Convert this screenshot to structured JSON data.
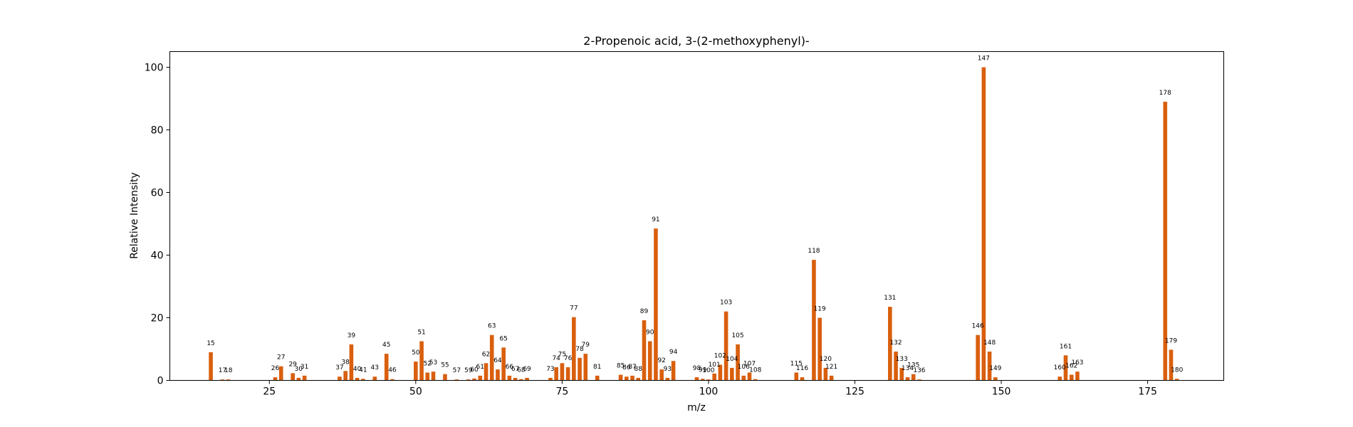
{
  "chart_data": {
    "type": "bar",
    "title": "2-Propenoic acid, 3-(2-methoxyphenyl)-",
    "xlabel": "m/z",
    "ylabel": "Relative Intensity",
    "xlim": [
      8,
      188
    ],
    "ylim": [
      0,
      105
    ],
    "xticks": [
      25,
      50,
      75,
      100,
      125,
      150,
      175
    ],
    "yticks": [
      0,
      20,
      40,
      60,
      80,
      100
    ],
    "grid": false,
    "bar_color": "#d95f0e",
    "peaks": [
      {
        "mz": 15,
        "intensity": 9
      },
      {
        "mz": 17,
        "intensity": 0.3
      },
      {
        "mz": 18,
        "intensity": 0.3
      },
      {
        "mz": 26,
        "intensity": 1
      },
      {
        "mz": 27,
        "intensity": 4.5
      },
      {
        "mz": 29,
        "intensity": 2.3
      },
      {
        "mz": 30,
        "intensity": 0.8
      },
      {
        "mz": 31,
        "intensity": 1.5
      },
      {
        "mz": 37,
        "intensity": 1.2
      },
      {
        "mz": 38,
        "intensity": 3
      },
      {
        "mz": 39,
        "intensity": 11.5
      },
      {
        "mz": 40,
        "intensity": 0.8
      },
      {
        "mz": 41,
        "intensity": 0.5
      },
      {
        "mz": 43,
        "intensity": 1.2
      },
      {
        "mz": 45,
        "intensity": 8.5
      },
      {
        "mz": 46,
        "intensity": 0.4
      },
      {
        "mz": 50,
        "intensity": 6
      },
      {
        "mz": 51,
        "intensity": 12.5
      },
      {
        "mz": 52,
        "intensity": 2.5
      },
      {
        "mz": 53,
        "intensity": 2.8
      },
      {
        "mz": 55,
        "intensity": 2
      },
      {
        "mz": 57,
        "intensity": 0.3
      },
      {
        "mz": 59,
        "intensity": 0.3
      },
      {
        "mz": 60,
        "intensity": 0.6
      },
      {
        "mz": 61,
        "intensity": 1.5
      },
      {
        "mz": 62,
        "intensity": 5.5
      },
      {
        "mz": 63,
        "intensity": 14.5
      },
      {
        "mz": 64,
        "intensity": 3.5
      },
      {
        "mz": 65,
        "intensity": 10.5
      },
      {
        "mz": 66,
        "intensity": 1.5
      },
      {
        "mz": 67,
        "intensity": 0.8
      },
      {
        "mz": 68,
        "intensity": 0.4
      },
      {
        "mz": 69,
        "intensity": 0.8
      },
      {
        "mz": 73,
        "intensity": 0.8
      },
      {
        "mz": 74,
        "intensity": 4.2
      },
      {
        "mz": 75,
        "intensity": 5.5
      },
      {
        "mz": 76,
        "intensity": 4.2
      },
      {
        "mz": 77,
        "intensity": 20.2
      },
      {
        "mz": 78,
        "intensity": 7.2
      },
      {
        "mz": 79,
        "intensity": 8.5
      },
      {
        "mz": 81,
        "intensity": 1.5
      },
      {
        "mz": 85,
        "intensity": 1.8
      },
      {
        "mz": 86,
        "intensity": 1.2
      },
      {
        "mz": 87,
        "intensity": 1.5
      },
      {
        "mz": 88,
        "intensity": 0.8
      },
      {
        "mz": 89,
        "intensity": 19.2
      },
      {
        "mz": 90,
        "intensity": 12.5
      },
      {
        "mz": 91,
        "intensity": 48.5
      },
      {
        "mz": 92,
        "intensity": 3.5
      },
      {
        "mz": 93,
        "intensity": 0.8
      },
      {
        "mz": 94,
        "intensity": 6.2
      },
      {
        "mz": 98,
        "intensity": 1
      },
      {
        "mz": 99,
        "intensity": 0.5
      },
      {
        "mz": 100,
        "intensity": 0.3
      },
      {
        "mz": 101,
        "intensity": 2.2
      },
      {
        "mz": 102,
        "intensity": 5
      },
      {
        "mz": 103,
        "intensity": 22
      },
      {
        "mz": 104,
        "intensity": 4
      },
      {
        "mz": 105,
        "intensity": 11.5
      },
      {
        "mz": 106,
        "intensity": 1.5
      },
      {
        "mz": 107,
        "intensity": 2.5
      },
      {
        "mz": 108,
        "intensity": 0.4
      },
      {
        "mz": 115,
        "intensity": 2.5
      },
      {
        "mz": 116,
        "intensity": 1
      },
      {
        "mz": 118,
        "intensity": 38.5
      },
      {
        "mz": 119,
        "intensity": 20
      },
      {
        "mz": 120,
        "intensity": 4
      },
      {
        "mz": 121,
        "intensity": 1.5
      },
      {
        "mz": 131,
        "intensity": 23.5
      },
      {
        "mz": 132,
        "intensity": 9.2
      },
      {
        "mz": 133,
        "intensity": 4
      },
      {
        "mz": 134,
        "intensity": 1
      },
      {
        "mz": 135,
        "intensity": 2
      },
      {
        "mz": 136,
        "intensity": 0.3
      },
      {
        "mz": 146,
        "intensity": 14.5
      },
      {
        "mz": 147,
        "intensity": 100
      },
      {
        "mz": 148,
        "intensity": 9.2
      },
      {
        "mz": 149,
        "intensity": 1
      },
      {
        "mz": 160,
        "intensity": 1.2
      },
      {
        "mz": 161,
        "intensity": 8
      },
      {
        "mz": 162,
        "intensity": 1.8
      },
      {
        "mz": 163,
        "intensity": 2.8
      },
      {
        "mz": 178,
        "intensity": 89
      },
      {
        "mz": 179,
        "intensity": 9.8
      },
      {
        "mz": 180,
        "intensity": 0.5
      }
    ]
  }
}
